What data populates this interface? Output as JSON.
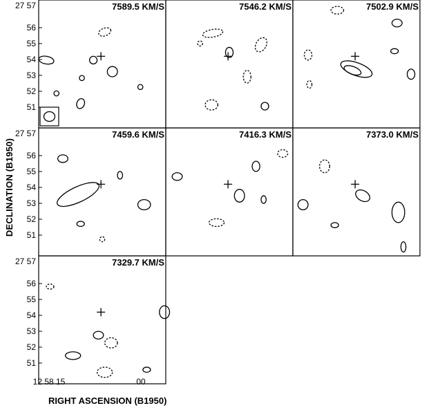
{
  "figure": {
    "ylabel": "DECLINATION (B1950)",
    "xlabel": "RIGHT ASCENSION (B1950)",
    "dec_prefix": "27 57",
    "dec_ticks": [
      "56",
      "55",
      "54",
      "53",
      "52",
      "51"
    ],
    "ra_ticks": [
      "12 58 15",
      "00"
    ]
  },
  "chart_data": [
    {
      "type": "contour",
      "velocity_label": "7589.5 KM/S",
      "beam": true
    },
    {
      "type": "contour",
      "velocity_label": "7546.2 KM/S"
    },
    {
      "type": "contour",
      "velocity_label": "7502.9 KM/S"
    },
    {
      "type": "contour",
      "velocity_label": "7459.6 KM/S"
    },
    {
      "type": "contour",
      "velocity_label": "7416.3 KM/S"
    },
    {
      "type": "contour",
      "velocity_label": "7373.0 KM/S"
    },
    {
      "type": "contour",
      "velocity_label": "7329.7 KM/S"
    }
  ]
}
